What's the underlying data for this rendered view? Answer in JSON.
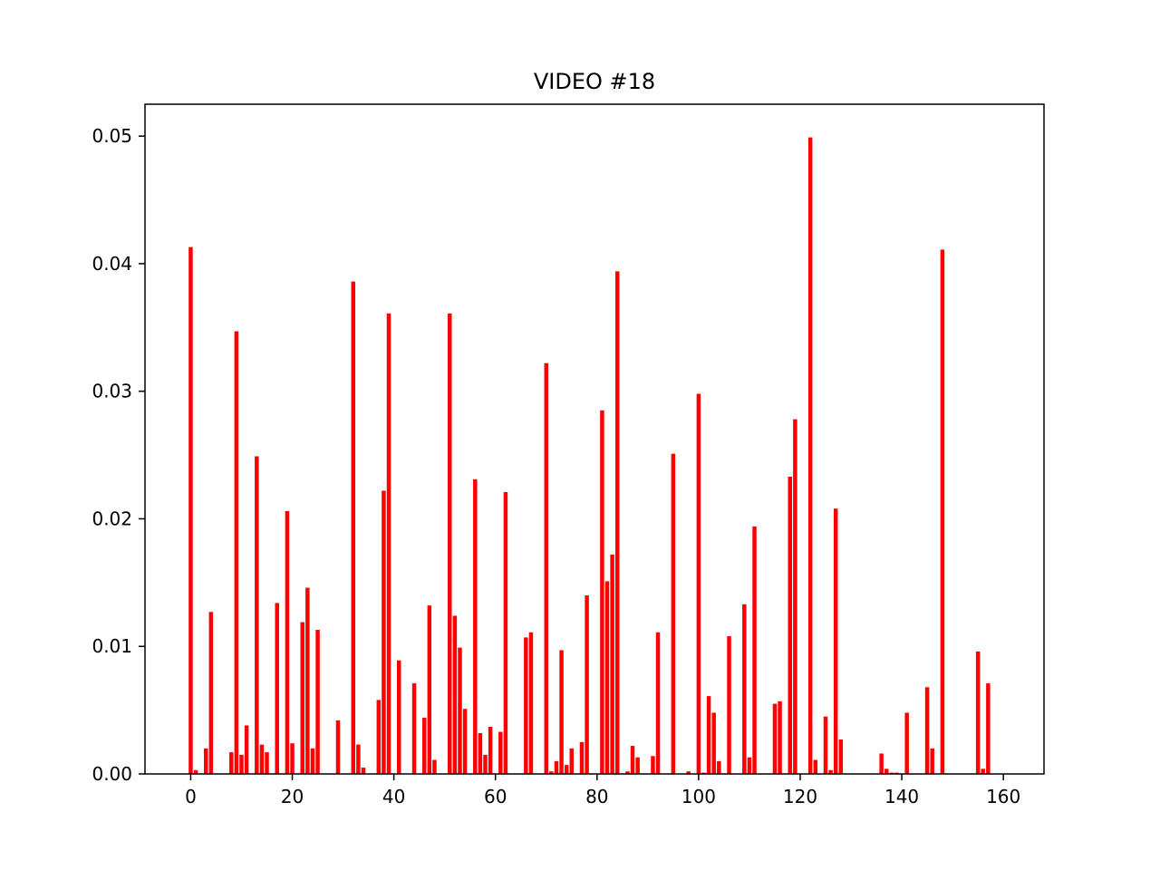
{
  "chart_data": {
    "type": "bar",
    "title": "VIDEO #18",
    "xlabel": "",
    "ylabel": "",
    "xlim": [
      -9,
      168
    ],
    "ylim": [
      0,
      0.0525
    ],
    "xticks": [
      0,
      20,
      40,
      60,
      80,
      100,
      120,
      140,
      160
    ],
    "xtick_labels": [
      "0",
      "20",
      "40",
      "60",
      "80",
      "100",
      "120",
      "140",
      "160"
    ],
    "yticks": [
      0,
      0.01,
      0.02,
      0.03,
      0.04,
      0.05
    ],
    "ytick_labels": [
      "0.00",
      "0.01",
      "0.02",
      "0.03",
      "0.04",
      "0.05"
    ],
    "grid": false,
    "bar_color": "#ff0000",
    "x": [
      0,
      1,
      3,
      4,
      8,
      9,
      10,
      11,
      13,
      14,
      15,
      17,
      19,
      20,
      22,
      23,
      24,
      25,
      29,
      32,
      33,
      34,
      37,
      38,
      39,
      41,
      44,
      46,
      47,
      48,
      51,
      52,
      53,
      54,
      56,
      57,
      58,
      59,
      61,
      62,
      66,
      67,
      70,
      71,
      72,
      73,
      74,
      75,
      77,
      78,
      81,
      82,
      83,
      84,
      86,
      87,
      88,
      91,
      92,
      95,
      98,
      100,
      101,
      102,
      103,
      104,
      106,
      109,
      110,
      111,
      115,
      116,
      118,
      119,
      122,
      123,
      125,
      126,
      127,
      128,
      136,
      137,
      138,
      139,
      141,
      145,
      146,
      148,
      155,
      156,
      157
    ],
    "values": [
      0.0413,
      0.0003,
      0.002,
      0.0127,
      0.0017,
      0.0347,
      0.0015,
      0.0038,
      0.0249,
      0.0023,
      0.0017,
      0.0134,
      0.0206,
      0.0024,
      0.0119,
      0.0146,
      0.002,
      0.0113,
      0.0042,
      0.0386,
      0.0023,
      0.0005,
      0.0058,
      0.0222,
      0.0361,
      0.0089,
      0.0071,
      0.0044,
      0.0132,
      0.0011,
      0.0361,
      0.0124,
      0.0099,
      0.0051,
      0.0231,
      0.0032,
      0.0015,
      0.0037,
      0.0033,
      0.0221,
      0.0107,
      0.0111,
      0.0322,
      0.0002,
      0.001,
      0.0097,
      0.0007,
      0.002,
      0.0025,
      0.014,
      0.0285,
      0.0151,
      0.0172,
      0.0394,
      0.0002,
      0.0022,
      0.0013,
      0.0014,
      0.0111,
      0.0251,
      0.0002,
      0.0298,
      0.0001,
      0.0061,
      0.0048,
      0.001,
      0.0108,
      0.0133,
      0.0013,
      0.0194,
      0.0055,
      0.0057,
      0.0233,
      0.0278,
      0.0499,
      0.0011,
      0.0045,
      0.0003,
      0.0208,
      0.0027,
      0.0016,
      0.0004,
      0.0001,
      0.0001,
      0.0048,
      0.0068,
      0.002,
      0.0411,
      0.0096,
      0.0004,
      0.0071
    ]
  }
}
